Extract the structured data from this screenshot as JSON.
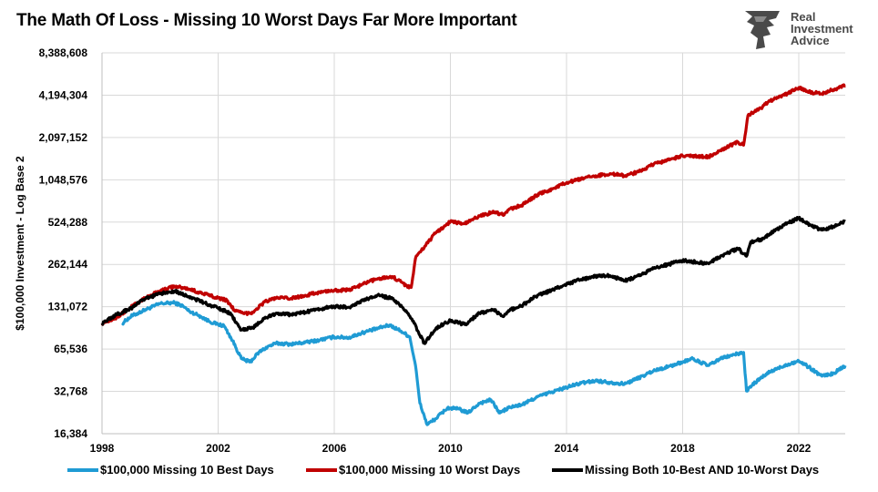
{
  "title": "The Math Of Loss - Missing 10 Worst Days Far More Important",
  "logo": {
    "line1": "Real",
    "line2": "Investment",
    "line3": "Advice",
    "icon": "lion-head-icon",
    "color": "#4a4a4a"
  },
  "chart_data": {
    "type": "line",
    "title": "The Math Of Loss - Missing 10 Worst Days Far More Important",
    "ylabel": "$100,000 Investment - Log Base 2",
    "xlabel": "",
    "yscale": "log2",
    "ylim": [
      16384,
      8388608
    ],
    "xlim": [
      1998,
      2023.6
    ],
    "x_ticks": [
      "1998",
      "2002",
      "2006",
      "2010",
      "2014",
      "2018",
      "2022"
    ],
    "y_ticks": [
      "16,384",
      "32,768",
      "65,536",
      "131,072",
      "262,144",
      "524,288",
      "1,048,576",
      "2,097,152",
      "4,194,304",
      "8,388,608"
    ],
    "y_tick_values": [
      16384,
      32768,
      65536,
      131072,
      262144,
      524288,
      1048576,
      2097152,
      4194304,
      8388608
    ],
    "grid": true,
    "legend_position": "bottom",
    "series": [
      {
        "name": "$100,000 Missing 10 Best Days",
        "color": "#1f9bd4",
        "points": [
          [
            1998.7,
            100000
          ],
          [
            1999.0,
            112000
          ],
          [
            1999.5,
            125000
          ],
          [
            2000.0,
            138000
          ],
          [
            2000.5,
            140000
          ],
          [
            2000.8,
            132000
          ],
          [
            2001.0,
            122000
          ],
          [
            2001.4,
            112000
          ],
          [
            2001.7,
            103000
          ],
          [
            2002.0,
            98000
          ],
          [
            2002.2,
            96000
          ],
          [
            2002.5,
            75000
          ],
          [
            2002.8,
            56000
          ],
          [
            2003.1,
            53000
          ],
          [
            2003.4,
            62000
          ],
          [
            2003.7,
            68000
          ],
          [
            2004.0,
            72000
          ],
          [
            2004.5,
            71000
          ],
          [
            2005.0,
            73000
          ],
          [
            2005.5,
            76000
          ],
          [
            2006.0,
            80000
          ],
          [
            2006.5,
            79000
          ],
          [
            2007.0,
            86000
          ],
          [
            2007.5,
            92000
          ],
          [
            2007.9,
            97000
          ],
          [
            2008.3,
            88000
          ],
          [
            2008.6,
            80000
          ],
          [
            2008.8,
            50000
          ],
          [
            2008.95,
            27000
          ],
          [
            2009.2,
            19000
          ],
          [
            2009.5,
            21000
          ],
          [
            2009.9,
            25000
          ],
          [
            2010.3,
            24500
          ],
          [
            2010.6,
            23000
          ],
          [
            2011.0,
            27000
          ],
          [
            2011.4,
            28500
          ],
          [
            2011.7,
            23000
          ],
          [
            2012.0,
            25000
          ],
          [
            2012.5,
            26500
          ],
          [
            2013.0,
            30000
          ],
          [
            2013.5,
            32500
          ],
          [
            2014.0,
            35000
          ],
          [
            2014.5,
            37500
          ],
          [
            2015.0,
            39000
          ],
          [
            2015.5,
            38000
          ],
          [
            2016.0,
            37000
          ],
          [
            2016.5,
            41000
          ],
          [
            2017.0,
            46000
          ],
          [
            2017.5,
            49000
          ],
          [
            2018.0,
            53000
          ],
          [
            2018.3,
            56000
          ],
          [
            2018.9,
            50000
          ],
          [
            2019.3,
            56000
          ],
          [
            2019.8,
            60000
          ],
          [
            2020.1,
            62000
          ],
          [
            2020.2,
            33000
          ],
          [
            2020.5,
            38000
          ],
          [
            2021.0,
            45000
          ],
          [
            2021.5,
            50000
          ],
          [
            2022.0,
            54000
          ],
          [
            2022.4,
            48000
          ],
          [
            2022.8,
            42000
          ],
          [
            2023.2,
            44000
          ],
          [
            2023.6,
            50000
          ]
        ]
      },
      {
        "name": "$100,000 Missing 10 Worst Days",
        "color": "#c00000",
        "points": [
          [
            1998.0,
            100000
          ],
          [
            1998.5,
            110000
          ],
          [
            1999.0,
            130000
          ],
          [
            1999.5,
            152000
          ],
          [
            2000.0,
            170000
          ],
          [
            2000.5,
            183000
          ],
          [
            2001.0,
            175000
          ],
          [
            2001.5,
            162000
          ],
          [
            2002.0,
            152000
          ],
          [
            2002.3,
            145000
          ],
          [
            2002.6,
            122000
          ],
          [
            2002.9,
            117000
          ],
          [
            2003.2,
            120000
          ],
          [
            2003.6,
            142000
          ],
          [
            2004.0,
            152000
          ],
          [
            2004.5,
            150000
          ],
          [
            2005.0,
            158000
          ],
          [
            2005.5,
            166000
          ],
          [
            2006.0,
            172000
          ],
          [
            2006.5,
            172000
          ],
          [
            2007.0,
            190000
          ],
          [
            2007.5,
            208000
          ],
          [
            2008.0,
            215000
          ],
          [
            2008.5,
            185000
          ],
          [
            2008.65,
            180000
          ],
          [
            2008.8,
            290000
          ],
          [
            2009.0,
            330000
          ],
          [
            2009.5,
            440000
          ],
          [
            2010.0,
            530000
          ],
          [
            2010.5,
            510000
          ],
          [
            2011.0,
            580000
          ],
          [
            2011.5,
            620000
          ],
          [
            2011.8,
            590000
          ],
          [
            2012.0,
            640000
          ],
          [
            2012.5,
            700000
          ],
          [
            2013.0,
            820000
          ],
          [
            2013.5,
            900000
          ],
          [
            2014.0,
            1000000
          ],
          [
            2014.5,
            1060000
          ],
          [
            2015.0,
            1120000
          ],
          [
            2015.5,
            1160000
          ],
          [
            2016.0,
            1120000
          ],
          [
            2016.5,
            1200000
          ],
          [
            2017.0,
            1350000
          ],
          [
            2017.5,
            1450000
          ],
          [
            2018.0,
            1550000
          ],
          [
            2018.9,
            1530000
          ],
          [
            2019.3,
            1700000
          ],
          [
            2019.9,
            1950000
          ],
          [
            2020.1,
            1850000
          ],
          [
            2020.25,
            3000000
          ],
          [
            2020.7,
            3400000
          ],
          [
            2021.0,
            3800000
          ],
          [
            2021.5,
            4200000
          ],
          [
            2022.0,
            4750000
          ],
          [
            2022.4,
            4400000
          ],
          [
            2022.8,
            4300000
          ],
          [
            2023.2,
            4600000
          ],
          [
            2023.6,
            4900000
          ]
        ]
      },
      {
        "name": "Missing Both 10-Best AND 10-Worst Days",
        "color": "#000000",
        "points": [
          [
            1998.0,
            100000
          ],
          [
            1998.5,
            115000
          ],
          [
            1999.0,
            128000
          ],
          [
            1999.5,
            150000
          ],
          [
            2000.0,
            162000
          ],
          [
            2000.5,
            170000
          ],
          [
            2001.0,
            155000
          ],
          [
            2001.5,
            140000
          ],
          [
            2002.0,
            128000
          ],
          [
            2002.4,
            118000
          ],
          [
            2002.8,
            90000
          ],
          [
            2003.2,
            93000
          ],
          [
            2003.6,
            108000
          ],
          [
            2004.0,
            118000
          ],
          [
            2004.5,
            115000
          ],
          [
            2005.0,
            120000
          ],
          [
            2005.5,
            126000
          ],
          [
            2006.0,
            132000
          ],
          [
            2006.5,
            130000
          ],
          [
            2007.0,
            145000
          ],
          [
            2007.5,
            158000
          ],
          [
            2008.0,
            150000
          ],
          [
            2008.5,
            120000
          ],
          [
            2008.75,
            100000
          ],
          [
            2009.1,
            72000
          ],
          [
            2009.5,
            92000
          ],
          [
            2010.0,
            105000
          ],
          [
            2010.5,
            98000
          ],
          [
            2011.0,
            118000
          ],
          [
            2011.5,
            125000
          ],
          [
            2011.8,
            112000
          ],
          [
            2012.0,
            123000
          ],
          [
            2012.5,
            135000
          ],
          [
            2013.0,
            158000
          ],
          [
            2013.5,
            172000
          ],
          [
            2014.0,
            190000
          ],
          [
            2014.5,
            205000
          ],
          [
            2015.0,
            215000
          ],
          [
            2015.5,
            218000
          ],
          [
            2016.0,
            200000
          ],
          [
            2016.5,
            218000
          ],
          [
            2017.0,
            245000
          ],
          [
            2017.5,
            262000
          ],
          [
            2018.0,
            280000
          ],
          [
            2018.9,
            265000
          ],
          [
            2019.3,
            300000
          ],
          [
            2019.9,
            340000
          ],
          [
            2020.2,
            300000
          ],
          [
            2020.35,
            380000
          ],
          [
            2020.8,
            400000
          ],
          [
            2021.0,
            430000
          ],
          [
            2021.5,
            500000
          ],
          [
            2022.0,
            560000
          ],
          [
            2022.4,
            500000
          ],
          [
            2022.8,
            460000
          ],
          [
            2023.2,
            490000
          ],
          [
            2023.6,
            530000
          ]
        ]
      }
    ]
  }
}
